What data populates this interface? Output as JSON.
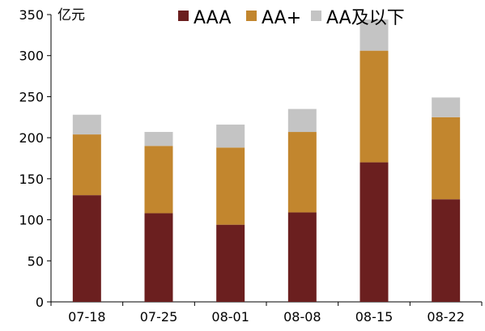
{
  "chart_data": {
    "type": "bar",
    "stacked": true,
    "title": "",
    "xlabel": "",
    "ylabel": "",
    "unit_label": "亿元",
    "categories": [
      "07-18",
      "07-25",
      "08-01",
      "08-08",
      "08-15",
      "08-22"
    ],
    "series": [
      {
        "name": "AAA",
        "color": "#6B1F1F",
        "values": [
          130,
          108,
          94,
          109,
          170,
          125
        ]
      },
      {
        "name": "AA+",
        "color": "#C2862E",
        "values": [
          74,
          82,
          94,
          98,
          136,
          100
        ]
      },
      {
        "name": "AA及以下",
        "color": "#C4C4C4",
        "values": [
          24,
          17,
          28,
          28,
          38,
          24
        ]
      }
    ],
    "ylim": [
      0,
      350
    ],
    "yticks": [
      0,
      50,
      100,
      150,
      200,
      250,
      300,
      350
    ],
    "grid": false,
    "legend_position": "top"
  }
}
